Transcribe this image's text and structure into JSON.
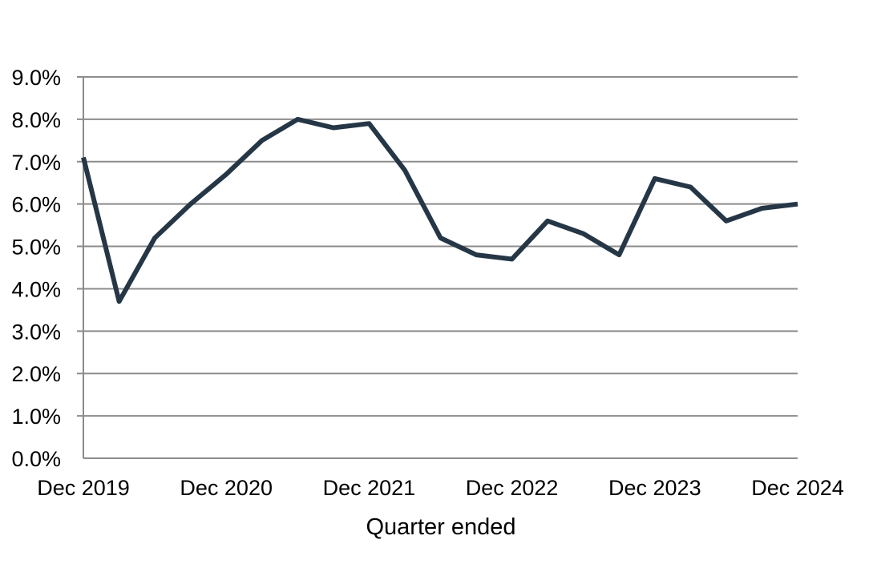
{
  "chart_data": {
    "type": "line",
    "title": "",
    "xlabel": "Quarter ended",
    "ylabel": "",
    "x": [
      "Dec 2019",
      "Mar 2020",
      "Jun 2020",
      "Sep 2020",
      "Dec 2020",
      "Mar 2021",
      "Jun 2021",
      "Sep 2021",
      "Dec 2021",
      "Mar 2022",
      "Jun 2022",
      "Sep 2022",
      "Dec 2022",
      "Mar 2023",
      "Jun 2023",
      "Sep 2023",
      "Dec 2023",
      "Mar 2024",
      "Jun 2024",
      "Sep 2024",
      "Dec 2024"
    ],
    "x_tick_labels": [
      "Dec 2019",
      "Dec 2020",
      "Dec 2021",
      "Dec 2022",
      "Dec 2023",
      "Dec 2024"
    ],
    "y_tick_labels": [
      "0.0%",
      "1.0%",
      "2.0%",
      "3.0%",
      "4.0%",
      "5.0%",
      "6.0%",
      "7.0%",
      "8.0%",
      "9.0%"
    ],
    "ylim": [
      0,
      9
    ],
    "y_unit": "%",
    "grid": true,
    "legend": "none",
    "series": [
      {
        "color": "#253746",
        "values": [
          7.1,
          3.7,
          5.2,
          6.0,
          6.7,
          7.5,
          8.0,
          7.8,
          7.9,
          6.8,
          5.2,
          4.8,
          4.7,
          5.6,
          5.3,
          4.8,
          6.6,
          6.4,
          5.6,
          5.9,
          6.0
        ]
      }
    ],
    "gridline_color": "#8c8c8c"
  }
}
